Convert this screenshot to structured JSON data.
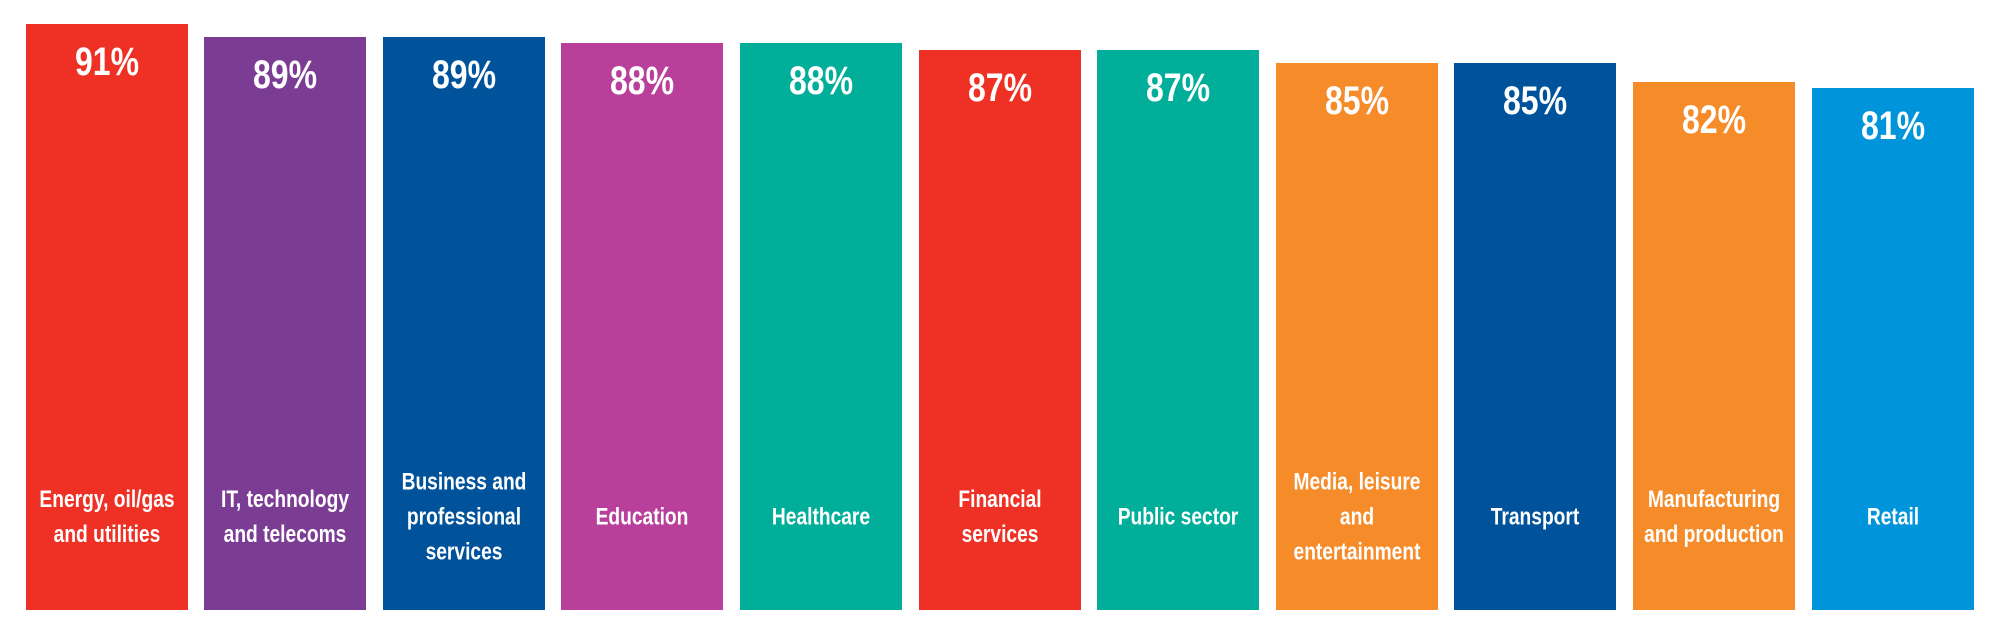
{
  "chart_data": {
    "type": "bar",
    "categories": [
      "Energy, oil/gas and utilities",
      "IT, technology and telecoms",
      "Business and professional services",
      "Education",
      "Healthcare",
      "Financial services",
      "Public sector",
      "Media, leisure and entertainment",
      "Transport",
      "Manufacturing and production",
      "Retail"
    ],
    "values": [
      91,
      89,
      89,
      88,
      88,
      87,
      87,
      85,
      85,
      82,
      81
    ],
    "value_labels": [
      "91%",
      "89%",
      "89%",
      "88%",
      "88%",
      "87%",
      "87%",
      "85%",
      "85%",
      "82%",
      "81%"
    ],
    "colors": [
      "#ee3124",
      "#7b3d94",
      "#00539b",
      "#b8409a",
      "#00ae9a",
      "#ee3124",
      "#00ae9a",
      "#f68b2a",
      "#00539b",
      "#f68b2a",
      "#0095da"
    ],
    "ylim": [
      0,
      91
    ]
  }
}
